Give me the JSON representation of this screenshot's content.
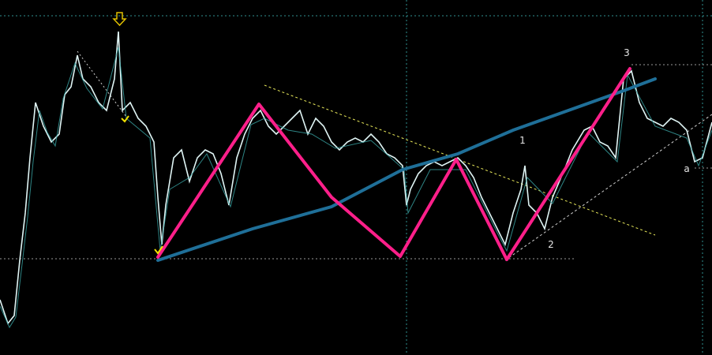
{
  "wave_labels": [
    "1",
    "2",
    "3",
    "a"
  ]
}
